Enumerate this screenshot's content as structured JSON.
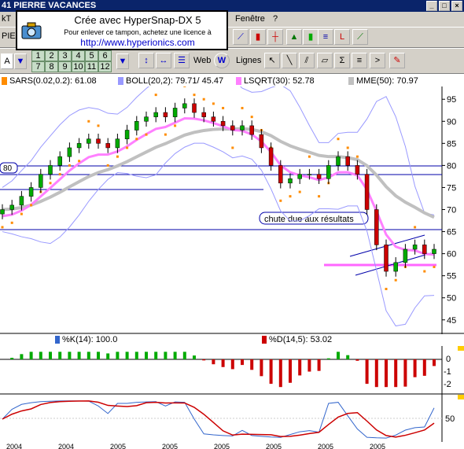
{
  "window": {
    "title": "41  PIERRE VACANCES"
  },
  "menu": {
    "left_partial": "kT",
    "fenetre": "Fenêtre",
    "help": "?"
  },
  "toolbar": {
    "symbol_partial": "PIE",
    "combo_letter": "A",
    "numbers_row1": [
      "1",
      "2",
      "3",
      "4",
      "5",
      "6"
    ],
    "numbers_row2": [
      "7",
      "8",
      "9",
      "10",
      "11",
      "12"
    ],
    "web_label": "Web",
    "lines_label": "Lignes"
  },
  "overlay": {
    "title": "Crée avec HyperSnap-DX 5",
    "subtitle": "Pour enlever ce tampon, achetez une licence à",
    "url": "http://www.hyperionics.com"
  },
  "indicators": {
    "sar": "SARS(0.02,0.2): 61.08",
    "boll": "BOLL(20,2): 79.71/ 45.47",
    "lsqrt": "LSQRT(30): 52.78",
    "mme": "MME(50): 70.97"
  },
  "colors": {
    "sar": "#ff8c00",
    "boll": "#9999ff",
    "lsqrt": "#ff80ff",
    "mme": "#c0c0c0",
    "candle_up": "#00aa00",
    "candle_down": "#cc0000",
    "stoch_k": "#3366cc",
    "stoch_d": "#cc0000"
  },
  "chart_data": {
    "type": "line",
    "y_ticks": [
      95,
      90,
      85,
      80,
      75,
      70,
      65,
      60,
      55,
      50,
      45
    ],
    "ylim": [
      43,
      97
    ],
    "level_label": "80",
    "annotation": "chute due aux résultats",
    "x_labels": [
      "2004",
      "2004",
      "2005",
      "2005",
      "2005",
      "2005",
      "2005",
      "2005"
    ],
    "close": [
      70,
      71,
      73,
      75,
      78,
      80,
      82,
      84,
      85,
      86,
      85,
      84,
      86,
      88,
      90,
      91,
      92,
      91,
      93,
      94,
      92,
      91,
      90,
      89,
      88,
      89,
      87,
      84,
      80,
      76,
      77,
      78,
      78,
      77,
      80,
      82,
      80,
      78,
      70,
      62,
      56,
      58,
      61,
      62,
      60,
      61
    ]
  },
  "oscillator": {
    "y_ticks": [
      "0",
      "-1",
      "-2"
    ]
  },
  "stochastic": {
    "k_label": "%K(14): 100.0",
    "d_label": "%D(14,5): 53.02",
    "y_tick": "50"
  }
}
